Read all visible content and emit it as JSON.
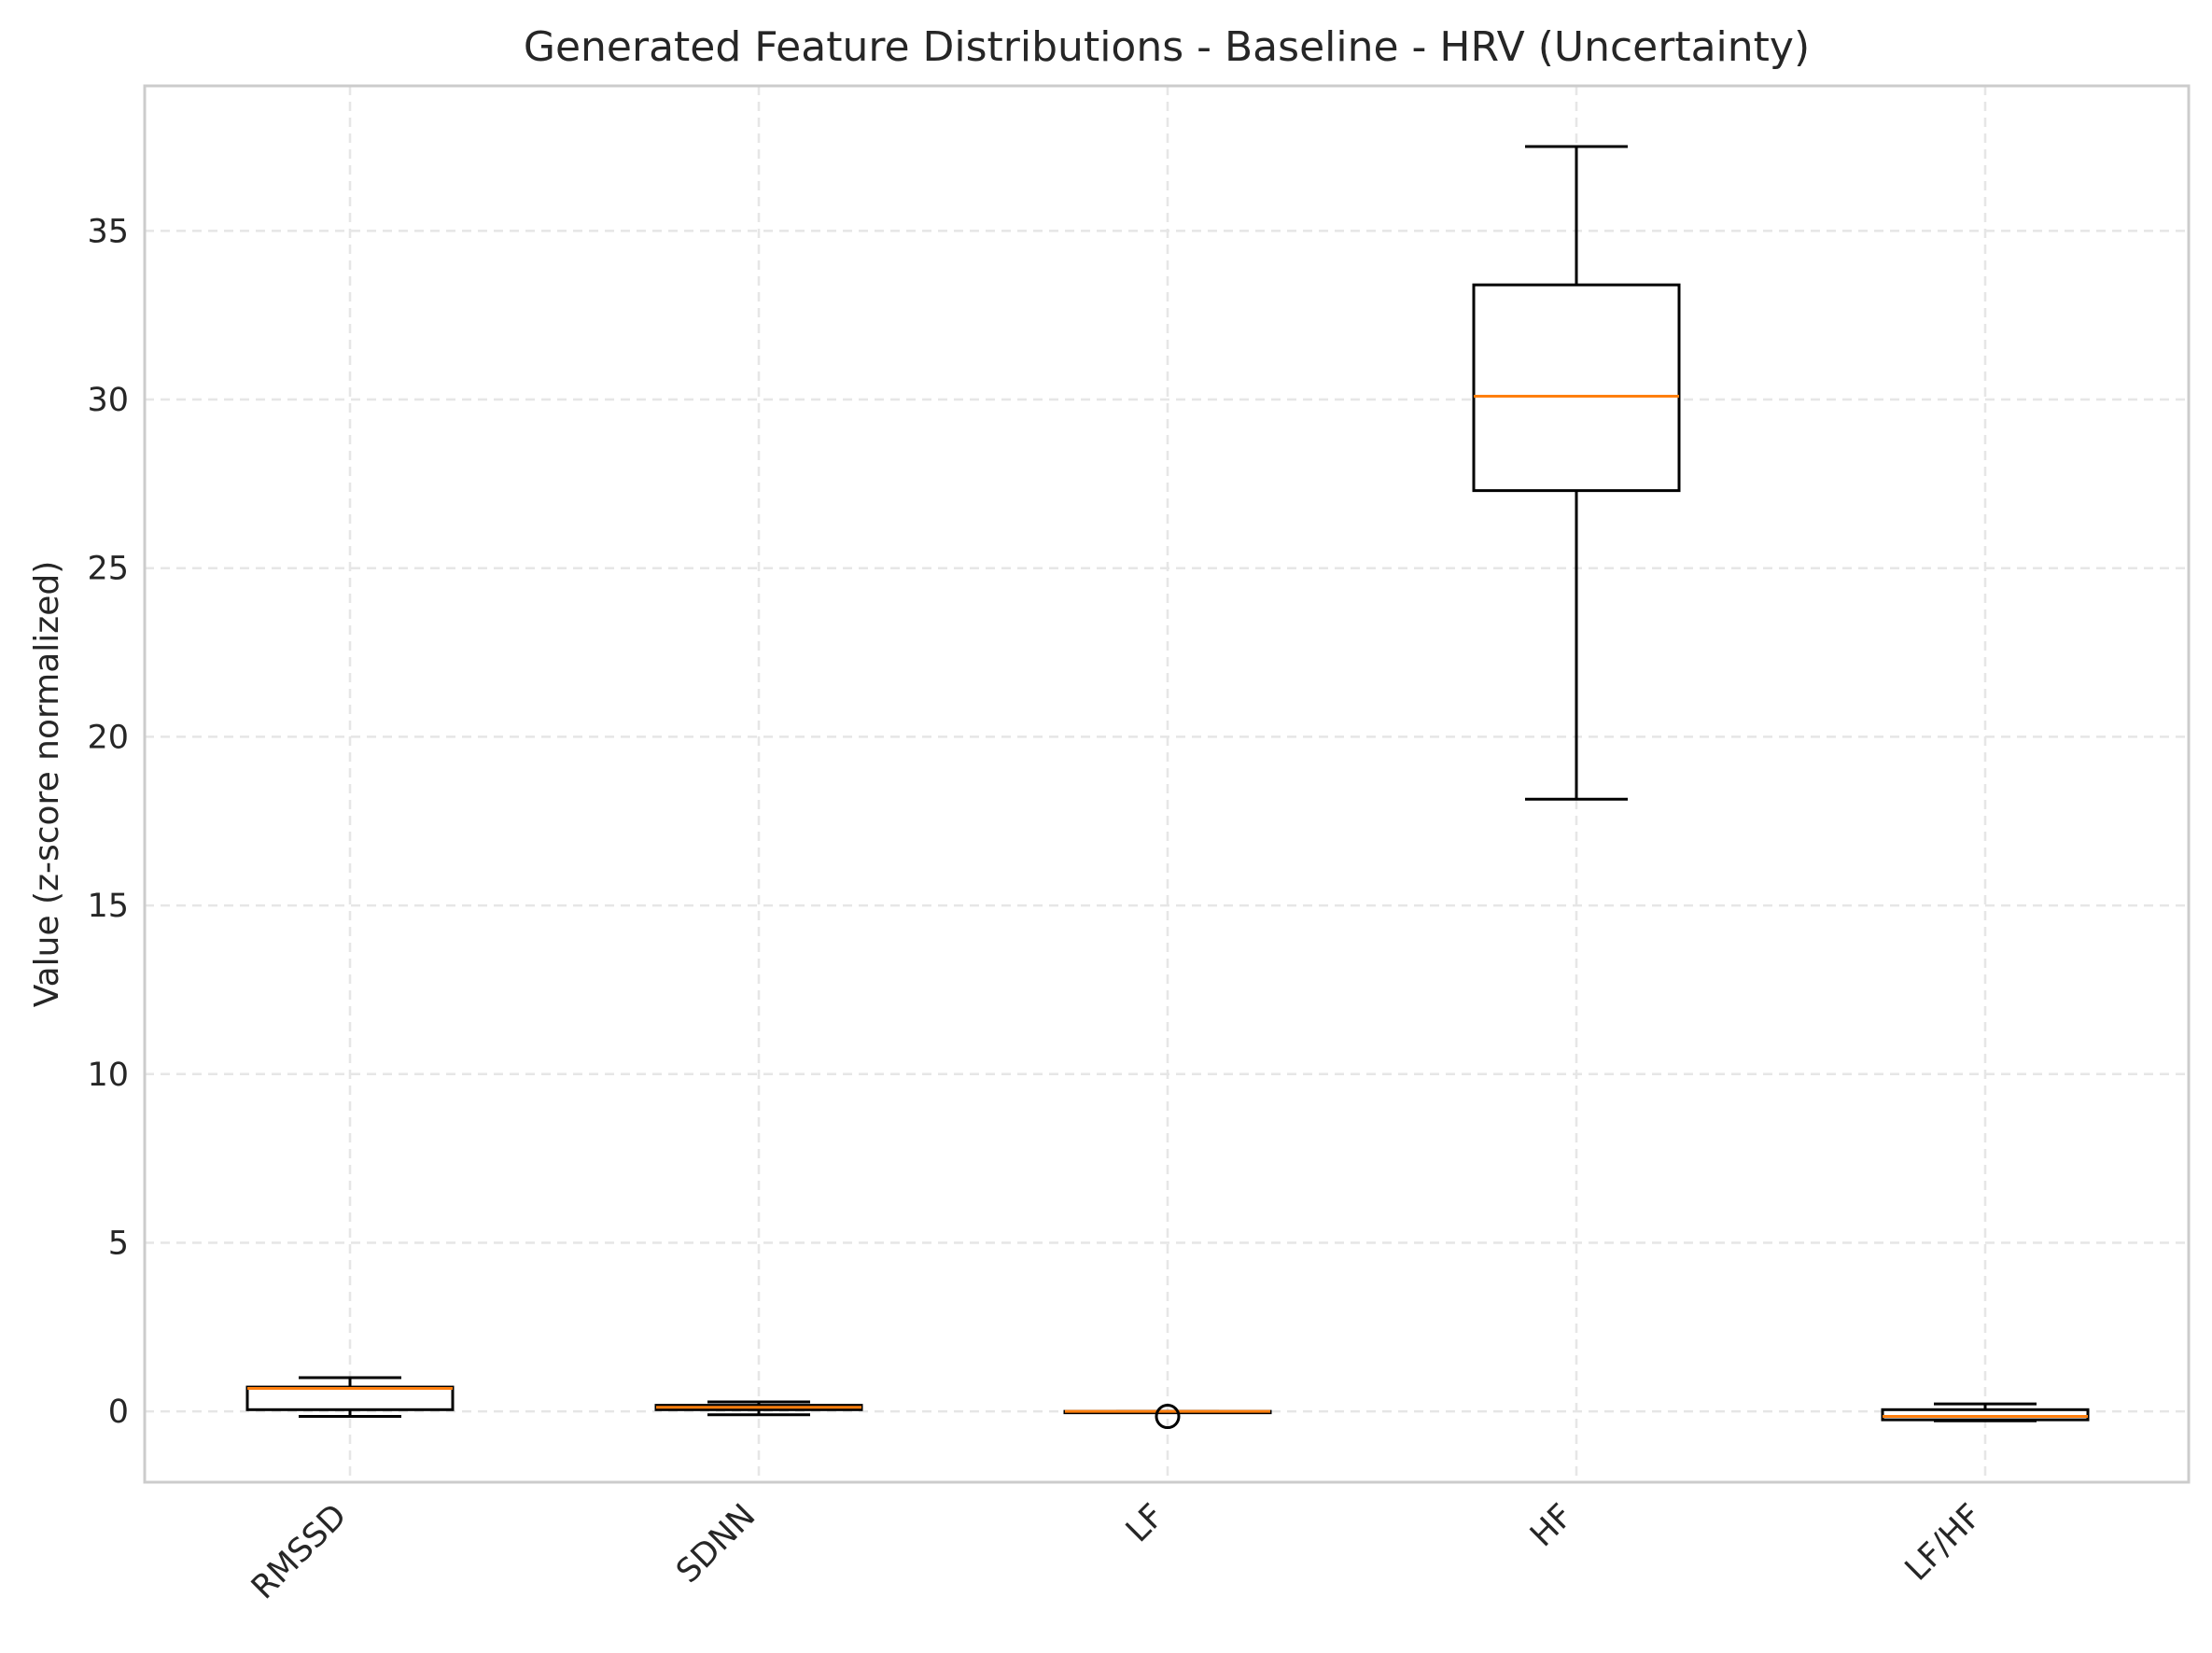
{
  "chart_data": {
    "type": "boxplot",
    "title": "Generated Feature Distributions - Baseline - HRV (Uncertainty)",
    "xlabel": "",
    "ylabel": "Value (z-score normalized)",
    "ylim": [
      -2.1,
      39.3
    ],
    "yticks": [
      0,
      5,
      10,
      15,
      20,
      25,
      30,
      35
    ],
    "categories": [
      "RMSSD",
      "SDNN",
      "LF",
      "HF",
      "LF/HF"
    ],
    "boxes": [
      {
        "label": "RMSSD",
        "whisker_low": -0.15,
        "q1": 0.05,
        "median": 0.68,
        "q3": 0.72,
        "whisker_high": 1.0,
        "outliers": []
      },
      {
        "label": "SDNN",
        "whisker_low": -0.1,
        "q1": 0.05,
        "median": 0.12,
        "q3": 0.18,
        "whisker_high": 0.28,
        "outliers": []
      },
      {
        "label": "LF",
        "whisker_low": 0.0,
        "q1": 0.0,
        "median": 0.0,
        "q3": 0.0,
        "whisker_high": 0.0,
        "outliers": [
          -0.15
        ]
      },
      {
        "label": "HF",
        "whisker_low": 18.15,
        "q1": 27.3,
        "median": 30.1,
        "q3": 33.4,
        "whisker_high": 37.5,
        "outliers": []
      },
      {
        "label": "LF/HF",
        "whisker_low": -0.28,
        "q1": -0.25,
        "median": -0.15,
        "q3": 0.05,
        "whisker_high": 0.22,
        "outliers": []
      }
    ],
    "grid": true,
    "colors": {
      "box": "#000000",
      "median": "#ff7f0e",
      "grid": "#e6e6e6",
      "axes_edge": "#cccccc",
      "text": "#262626"
    }
  }
}
